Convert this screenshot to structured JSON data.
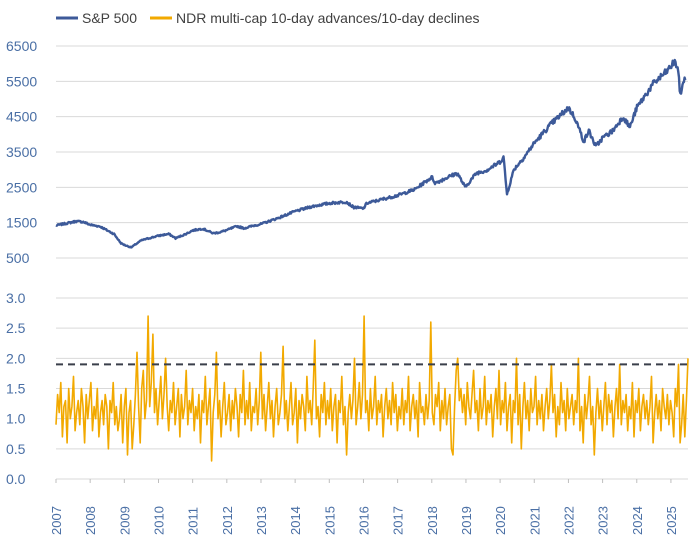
{
  "colors": {
    "sp500": "#3d5a99",
    "ndr": "#f2a900",
    "threshold": "#3a3f4a",
    "tick": "#4a6fa5",
    "grid": "#d9d9d9"
  },
  "legend": [
    {
      "key": "sp500",
      "label": "S&P 500"
    },
    {
      "key": "ndr",
      "label": "NDR multi-cap 10-day advances/10-day declines"
    }
  ],
  "chart_data": [
    {
      "type": "line",
      "legend_position": "top-left",
      "grid": true,
      "xlim": [
        2007,
        2025.5
      ],
      "ylim": [
        500,
        6500
      ],
      "yticks": [
        500,
        1500,
        2500,
        3500,
        4500,
        5500,
        6500
      ],
      "series": [
        {
          "name": "S&P 500",
          "key": "sp500",
          "x": [
            2007.0,
            2007.3,
            2007.6,
            2007.8,
            2008.0,
            2008.3,
            2008.5,
            2008.7,
            2008.9,
            2009.0,
            2009.2,
            2009.5,
            2009.8,
            2010.0,
            2010.3,
            2010.5,
            2010.8,
            2011.0,
            2011.3,
            2011.6,
            2011.8,
            2012.0,
            2012.3,
            2012.5,
            2012.8,
            2013.0,
            2013.5,
            2014.0,
            2014.5,
            2015.0,
            2015.5,
            2015.7,
            2016.0,
            2016.1,
            2016.5,
            2017.0,
            2017.5,
            2018.0,
            2018.1,
            2018.5,
            2018.75,
            2018.98,
            2019.3,
            2019.6,
            2020.0,
            2020.1,
            2020.2,
            2020.4,
            2020.7,
            2021.0,
            2021.5,
            2022.0,
            2022.2,
            2022.45,
            2022.6,
            2022.8,
            2023.0,
            2023.3,
            2023.6,
            2023.8,
            2024.0,
            2024.5,
            2024.9,
            2025.1,
            2025.2,
            2025.28,
            2025.35,
            2025.42
          ],
          "values": [
            1420,
            1480,
            1540,
            1520,
            1440,
            1390,
            1280,
            1180,
            920,
            870,
            800,
            1000,
            1080,
            1130,
            1180,
            1060,
            1180,
            1280,
            1330,
            1200,
            1230,
            1290,
            1400,
            1340,
            1420,
            1460,
            1630,
            1820,
            1960,
            2050,
            2090,
            1940,
            1900,
            2050,
            2150,
            2270,
            2440,
            2790,
            2620,
            2800,
            2900,
            2500,
            2900,
            2980,
            3220,
            3360,
            2300,
            3000,
            3350,
            3750,
            4300,
            4750,
            4450,
            3800,
            4100,
            3650,
            3900,
            4100,
            4500,
            4200,
            4750,
            5450,
            5800,
            6050,
            5900,
            5050,
            5500,
            5550
          ]
        }
      ]
    },
    {
      "type": "line",
      "grid": true,
      "xlim": [
        2007,
        2025.5
      ],
      "ylim": [
        0,
        3.0
      ],
      "yticks": [
        "0.0",
        "0.5",
        "1.0",
        "1.5",
        "2.0",
        "2.5",
        "3.0"
      ],
      "xticks": [
        "2007",
        "2008",
        "2009",
        "2010",
        "2011",
        "2012",
        "2013",
        "2014",
        "2015",
        "2016",
        "2017",
        "2018",
        "2019",
        "2020",
        "2021",
        "2022",
        "2023",
        "2024",
        "2025"
      ],
      "threshold": 1.9,
      "series": [
        {
          "name": "NDR multi-cap 10-day advances/10-day declines",
          "key": "ndr",
          "x_start": 2007.0,
          "x_end": 2025.5,
          "values": [
            0.9,
            1.4,
            1.1,
            1.6,
            0.7,
            1.2,
            1.3,
            0.6,
            1.5,
            1.0,
            1.2,
            1.7,
            0.8,
            1.1,
            1.3,
            0.9,
            1.5,
            1.2,
            0.6,
            1.4,
            1.0,
            1.3,
            1.6,
            0.8,
            1.2,
            1.0,
            1.5,
            0.7,
            1.1,
            1.3,
            0.9,
            1.4,
            1.2,
            0.5,
            1.3,
            1.1,
            1.6,
            0.9,
            1.2,
            0.8,
            1.0,
            1.4,
            0.6,
            1.2,
            1.5,
            0.4,
            1.1,
            1.3,
            0.5,
            0.9,
            1.4,
            2.1,
            1.2,
            0.6,
            1.5,
            1.8,
            1.0,
            1.3,
            2.7,
            1.2,
            1.6,
            2.4,
            1.1,
            1.5,
            0.9,
            1.3,
            1.7,
            1.0,
            1.4,
            2.0,
            1.2,
            0.8,
            1.3,
            1.1,
            1.6,
            0.9,
            1.2,
            1.5,
            0.7,
            1.4,
            1.0,
            1.2,
            1.8,
            0.9,
            1.3,
            1.1,
            1.5,
            0.8,
            1.2,
            1.0,
            1.4,
            0.6,
            1.3,
            1.1,
            1.7,
            0.9,
            1.2,
            1.5,
            0.3,
            1.1,
            1.4,
            2.1,
            1.0,
            1.3,
            0.7,
            1.2,
            1.6,
            0.9,
            1.1,
            1.4,
            0.8,
            1.3,
            1.0,
            1.5,
            1.2,
            0.7,
            1.4,
            1.1,
            1.8,
            0.9,
            1.3,
            1.0,
            1.6,
            0.8,
            1.2,
            1.1,
            1.5,
            0.9,
            1.3,
            2.1,
            1.0,
            1.4,
            0.8,
            1.2,
            1.6,
            1.0,
            1.3,
            0.7,
            1.2,
            1.5,
            0.9,
            1.1,
            1.4,
            2.2,
            1.0,
            1.3,
            0.8,
            1.2,
            1.6,
            0.9,
            1.1,
            1.5,
            0.6,
            1.3,
            1.0,
            1.4,
            1.2,
            0.8,
            1.7,
            1.1,
            1.3,
            0.9,
            1.5,
            2.3,
            1.0,
            1.2,
            0.7,
            1.4,
            1.1,
            1.6,
            0.9,
            1.3,
            1.0,
            1.5,
            0.8,
            1.2,
            1.4,
            0.6,
            1.3,
            1.1,
            1.7,
            0.9,
            1.2,
            0.4,
            1.1,
            1.4,
            1.0,
            1.3,
            2.0,
            0.9,
            1.2,
            1.6,
            1.0,
            1.4,
            2.7,
            1.1,
            1.3,
            0.8,
            1.5,
            1.0,
            1.2,
            1.7,
            0.9,
            1.3,
            1.1,
            1.4,
            0.7,
            1.2,
            1.5,
            1.0,
            1.3,
            0.9,
            1.6,
            1.1,
            1.4,
            0.8,
            1.2,
            1.0,
            1.5,
            0.9,
            1.3,
            1.1,
            1.7,
            0.8,
            1.2,
            1.4,
            1.0,
            1.3,
            0.7,
            1.6,
            1.1,
            1.2,
            0.9,
            1.4,
            1.0,
            1.3,
            2.6,
            1.1,
            0.9,
            1.4,
            1.2,
            1.6,
            0.8,
            1.3,
            1.0,
            1.5,
            0.9,
            1.2,
            1.4,
            0.5,
            0.4,
            1.2,
            1.8,
            2.0,
            1.3,
            1.5,
            1.1,
            1.4,
            0.9,
            1.6,
            1.2,
            1.0,
            1.4,
            1.8,
            1.1,
            1.3,
            0.8,
            1.5,
            1.0,
            1.2,
            1.7,
            0.9,
            1.3,
            1.1,
            1.4,
            0.7,
            1.2,
            1.5,
            1.0,
            1.8,
            0.9,
            1.3,
            1.1,
            1.6,
            0.8,
            1.2,
            1.4,
            0.6,
            1.3,
            1.1,
            2.0,
            0.9,
            1.4,
            0.5,
            1.2,
            1.6,
            1.0,
            1.3,
            0.8,
            1.5,
            1.1,
            1.2,
            1.7,
            0.9,
            1.3,
            1.0,
            1.4,
            0.8,
            1.2,
            1.5,
            1.0,
            1.3,
            1.9,
            1.1,
            1.4,
            0.7,
            1.2,
            0.9,
            1.6,
            1.1,
            1.3,
            0.8,
            1.5,
            1.0,
            1.2,
            1.4,
            0.9,
            1.3,
            1.1,
            2.0,
            0.8,
            1.2,
            0.6,
            1.4,
            1.0,
            1.3,
            1.7,
            0.9,
            1.2,
            0.4,
            1.1,
            1.5,
            1.0,
            1.3,
            0.8,
            1.2,
            1.6,
            0.9,
            1.4,
            1.1,
            1.3,
            0.7,
            1.2,
            1.5,
            1.0,
            1.9,
            0.9,
            1.3,
            1.1,
            1.4,
            0.8,
            1.2,
            1.0,
            1.6,
            0.7,
            1.3,
            1.1,
            1.5,
            0.8,
            1.2,
            1.4,
            1.0,
            1.3,
            0.9,
            1.2,
            1.7,
            0.6,
            1.1,
            1.4,
            1.0,
            1.3,
            0.8,
            1.5,
            1.2,
            1.0,
            1.4,
            0.9,
            1.3,
            1.1,
            0.7,
            1.5,
            1.2,
            1.9,
            0.6,
            0.9,
            1.4,
            0.7,
            1.3,
            2.0
          ]
        }
      ]
    }
  ]
}
